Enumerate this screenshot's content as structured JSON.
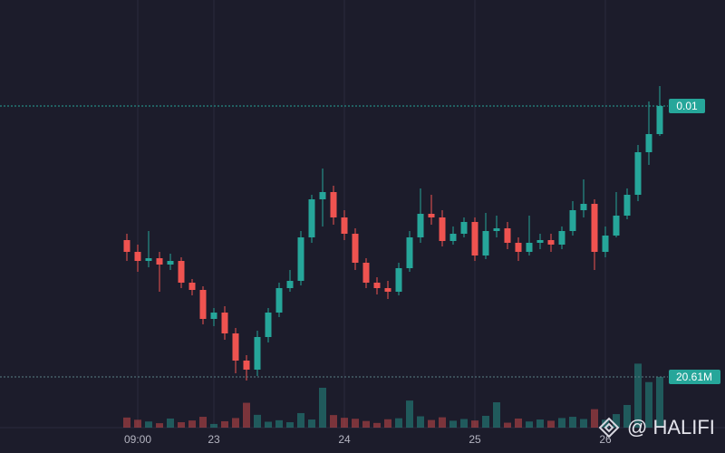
{
  "chart_data": {
    "type": "candlestick",
    "categories": [
      null,
      "09:00",
      null,
      null,
      null,
      null,
      null,
      null,
      "23",
      null,
      null,
      null,
      null,
      null,
      null,
      null,
      null,
      null,
      null,
      null,
      "24",
      null,
      null,
      null,
      null,
      null,
      null,
      null,
      null,
      null,
      null,
      null,
      "25",
      null,
      null,
      null,
      null,
      null,
      null,
      null,
      null,
      null,
      null,
      null,
      "26",
      null,
      null,
      null,
      null,
      null
    ],
    "open": [
      0.00852,
      0.00839,
      0.00829,
      0.00832,
      0.00825,
      0.00829,
      0.00805,
      0.00797,
      0.00765,
      0.00772,
      0.00749,
      0.00719,
      0.00709,
      0.00745,
      0.00772,
      0.00799,
      0.00807,
      0.00855,
      0.00897,
      0.00905,
      0.00877,
      0.00859,
      0.00827,
      0.00805,
      0.00799,
      0.00795,
      0.00821,
      0.00855,
      0.00881,
      0.00877,
      0.00851,
      0.00859,
      0.00872,
      0.00835,
      0.00862,
      0.00865,
      0.00849,
      0.00839,
      0.00849,
      0.00852,
      0.00847,
      0.00862,
      0.00885,
      0.00892,
      0.00839,
      0.00857,
      0.00879,
      0.00902,
      0.00949,
      0.00969
    ],
    "high": [
      0.00859,
      0.00847,
      0.00862,
      0.00839,
      0.00837,
      0.00833,
      0.00809,
      0.00801,
      0.00777,
      0.00779,
      0.00755,
      0.00725,
      0.00752,
      0.00777,
      0.00805,
      0.00819,
      0.00862,
      0.00902,
      0.00931,
      0.00912,
      0.00885,
      0.00865,
      0.00832,
      0.00811,
      0.00807,
      0.00827,
      0.00862,
      0.00909,
      0.00902,
      0.00885,
      0.00867,
      0.00877,
      0.00877,
      0.00882,
      0.00879,
      0.00872,
      0.00855,
      0.00879,
      0.00859,
      0.00859,
      0.00867,
      0.00895,
      0.00919,
      0.00897,
      0.00867,
      0.00905,
      0.00909,
      0.00957,
      0.01005,
      0.01022
    ],
    "low": [
      0.00829,
      0.00817,
      0.00822,
      0.00795,
      0.00819,
      0.00799,
      0.00791,
      0.00759,
      0.00757,
      0.00742,
      0.00705,
      0.00697,
      0.00702,
      0.00739,
      0.00767,
      0.00795,
      0.00802,
      0.00849,
      0.00867,
      0.00869,
      0.00852,
      0.00819,
      0.00799,
      0.00792,
      0.00787,
      0.00791,
      0.00817,
      0.00849,
      0.00869,
      0.00845,
      0.00847,
      0.00855,
      0.00829,
      0.00831,
      0.00855,
      0.00842,
      0.00829,
      0.00835,
      0.00842,
      0.00839,
      0.00842,
      0.00857,
      0.00877,
      0.00819,
      0.00833,
      0.00855,
      0.00875,
      0.00895,
      0.00935,
      0.00967
    ],
    "close": [
      0.00839,
      0.00829,
      0.00832,
      0.00825,
      0.00829,
      0.00805,
      0.00797,
      0.00765,
      0.00772,
      0.00749,
      0.00719,
      0.00709,
      0.00745,
      0.00772,
      0.00799,
      0.00807,
      0.00855,
      0.00897,
      0.00905,
      0.00877,
      0.00859,
      0.00827,
      0.00805,
      0.00799,
      0.00795,
      0.00821,
      0.00855,
      0.00881,
      0.00877,
      0.00851,
      0.00859,
      0.00872,
      0.00835,
      0.00862,
      0.00865,
      0.00849,
      0.00839,
      0.00849,
      0.00852,
      0.00847,
      0.00862,
      0.00885,
      0.00892,
      0.00839,
      0.00857,
      0.00879,
      0.00902,
      0.00949,
      0.00969,
      0.01
    ],
    "volume": [
      4100000,
      3200000,
      2500000,
      1800000,
      3700000,
      2200000,
      2900000,
      4400000,
      1500000,
      2600000,
      3900000,
      10100000,
      5200000,
      2400000,
      3000000,
      2200000,
      5900000,
      3300000,
      16200000,
      5100000,
      4000000,
      3600000,
      2700000,
      1900000,
      3400000,
      3800000,
      11000000,
      4600000,
      3100000,
      4200000,
      2800000,
      3500000,
      2900000,
      4800000,
      10300000,
      2000000,
      3700000,
      2500000,
      3300000,
      2800000,
      3900000,
      4400000,
      3500000,
      7500000,
      3200000,
      5500000,
      9200000,
      26000000,
      18500000,
      20610000
    ],
    "ylim": [
      0.00645,
      0.01117
    ],
    "volume_ylim": [
      0,
      60000000
    ],
    "last_price": {
      "value": 0.01,
      "label": "0.01"
    },
    "last_volume": {
      "value": 20610000,
      "label": "20.61M"
    },
    "up_color": "#26a69a",
    "down_color": "#ef5350",
    "grid": true,
    "watermark": "@ HALIFI"
  }
}
